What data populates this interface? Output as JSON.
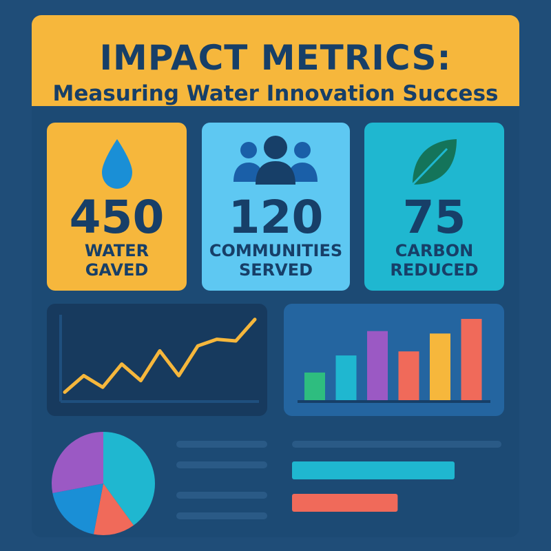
{
  "header": {
    "title": "IMPACT METRICS:",
    "subtitle": "Measuring Water Innovation Success"
  },
  "cards": [
    {
      "number": "450",
      "label_line1": "WATER",
      "label_line2": "GAVED",
      "icon": "water-drop-icon",
      "bg": "#f6b73c"
    },
    {
      "number": "120",
      "label_line1": "COMMUNITIES",
      "label_line2": "SERVED",
      "icon": "people-group-icon",
      "bg": "#5ec8f2"
    },
    {
      "number": "75",
      "label_line1": "CARBON",
      "label_line2": "REDUCED",
      "icon": "leaf-icon",
      "bg": "#1fb7d0"
    }
  ],
  "colors": {
    "background": "#1f4d78",
    "panel": "#1c4a74",
    "text_dark": "#173f68",
    "line": "#f6b73c",
    "green": "#2ebd7f",
    "teal": "#1fb7d0",
    "purple": "#9b59c4",
    "coral": "#f06a5a",
    "yellow": "#f6b73c",
    "blue": "#1a8fd6"
  },
  "chart_data": [
    {
      "type": "line",
      "x": [
        0,
        1,
        2,
        3,
        4,
        5,
        6,
        7,
        8,
        9,
        10
      ],
      "values": [
        8,
        28,
        14,
        42,
        22,
        58,
        28,
        64,
        72,
        70,
        96
      ],
      "ylim": [
        0,
        100
      ]
    },
    {
      "type": "bar",
      "values": [
        34,
        55,
        85,
        60,
        82,
        100
      ],
      "colors": [
        "#2ebd7f",
        "#1fb7d0",
        "#9b59c4",
        "#f06a5a",
        "#f6b73c",
        "#f06a5a"
      ],
      "ylim": [
        0,
        100
      ]
    },
    {
      "type": "pie",
      "values": [
        40,
        13,
        19,
        28
      ],
      "colors": [
        "#1fb7d0",
        "#f06a5a",
        "#1a8fd6",
        "#9b59c4"
      ]
    },
    {
      "type": "bar",
      "orientation": "horizontal",
      "values": [
        100,
        65
      ],
      "colors": [
        "#1fb7d0",
        "#f06a5a"
      ]
    }
  ]
}
